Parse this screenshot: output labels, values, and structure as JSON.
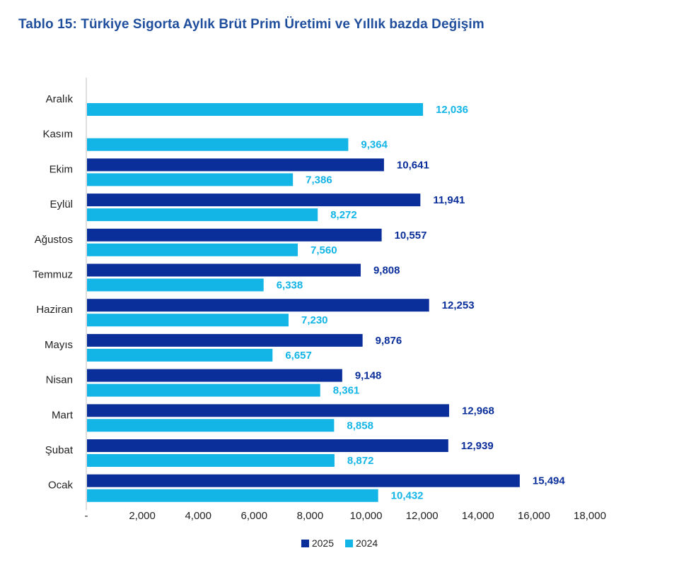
{
  "chart_data": {
    "type": "bar",
    "orientation": "horizontal",
    "title": "Tablo 15: Türkiye Sigorta Aylık Brüt Prim Üretimi ve Yıllık bazda Değişim",
    "categories": [
      "Aralık",
      "Kasım",
      "Ekim",
      "Eylül",
      "Ağustos",
      "Temmuz",
      "Haziran",
      "Mayıs",
      "Nisan",
      "Mart",
      "Şubat",
      "Ocak"
    ],
    "series": [
      {
        "name": "2025",
        "color": "#0b2f9a",
        "values": [
          null,
          null,
          10641,
          11941,
          10557,
          9808,
          12253,
          9876,
          9148,
          12968,
          12939,
          15494
        ],
        "labels": [
          "",
          "",
          "10,641",
          "11,941",
          "10,557",
          "9,808",
          "12,253",
          "9,876",
          "9,148",
          "12,968",
          "12,939",
          "15,494"
        ]
      },
      {
        "name": "2024",
        "color": "#13b5e6",
        "values": [
          12036,
          9364,
          7386,
          8272,
          7560,
          6338,
          7230,
          6657,
          8361,
          8858,
          8872,
          10432
        ],
        "labels": [
          "12,036",
          "9,364",
          "7,386",
          "8,272",
          "7,560",
          "6,338",
          "7,230",
          "6,657",
          "8,361",
          "8,858",
          "8,872",
          "10,432"
        ]
      }
    ],
    "xlim": [
      0,
      18000
    ],
    "xticks": [
      "-",
      "2,000",
      "4,000",
      "6,000",
      "8,000",
      "10,000",
      "12,000",
      "14,000",
      "16,000",
      "18,000"
    ],
    "grid": false,
    "legend_position": "bottom"
  }
}
